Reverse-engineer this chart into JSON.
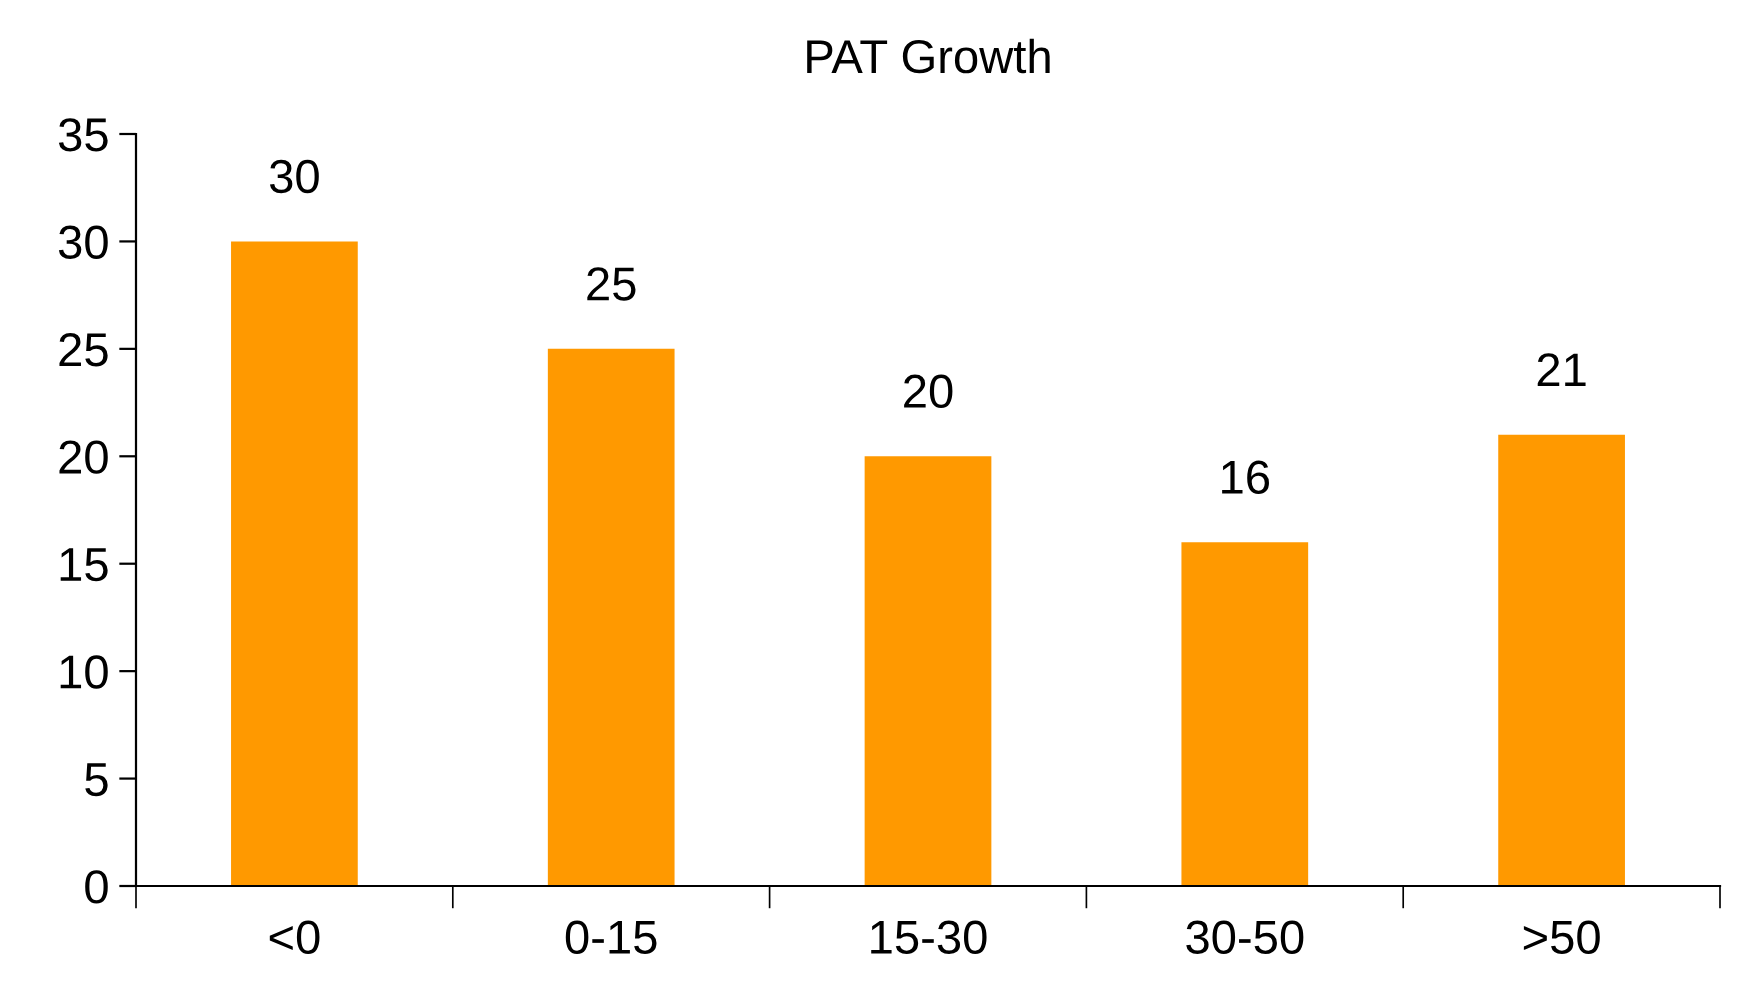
{
  "chart_data": {
    "type": "bar",
    "title": "PAT Growth",
    "categories": [
      "<0",
      "0-15",
      "15-30",
      "30-50",
      ">50"
    ],
    "values": [
      30,
      25,
      20,
      16,
      21
    ],
    "color": "#ff9900",
    "ylim": [
      0,
      35
    ],
    "yticks": [
      0,
      5,
      10,
      15,
      20,
      25,
      30,
      35
    ],
    "grid": false,
    "data_labels": true,
    "legend": false
  }
}
